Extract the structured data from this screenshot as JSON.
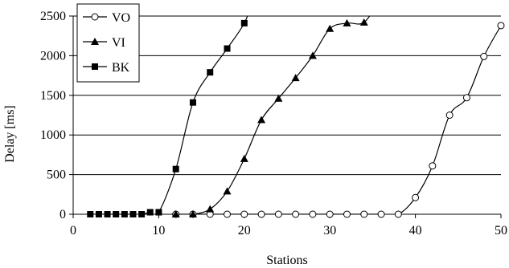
{
  "chart_data": {
    "type": "line",
    "xlabel": "Stations",
    "ylabel": "Delay [ms]",
    "xlim": [
      0,
      50
    ],
    "ylim": [
      0,
      2500
    ],
    "x_ticks": [
      0,
      10,
      20,
      30,
      40,
      50
    ],
    "y_ticks": [
      0,
      500,
      1000,
      1500,
      2000,
      2500
    ],
    "grid": "horizontal",
    "legend_position": "top-left",
    "line_color": "#000000",
    "series": [
      {
        "name": "VO",
        "marker": "circle-open",
        "x": [
          12,
          14,
          16,
          18,
          20,
          22,
          24,
          26,
          28,
          30,
          32,
          34,
          36,
          38,
          40,
          42,
          44,
          46,
          48,
          50
        ],
        "y": [
          0,
          0,
          0,
          0,
          0,
          0,
          0,
          0,
          0,
          0,
          0,
          0,
          0,
          0,
          210,
          610,
          1250,
          1470,
          1990,
          2380
        ]
      },
      {
        "name": "VI",
        "marker": "triangle-filled",
        "x": [
          12,
          14,
          16,
          18,
          20,
          22,
          24,
          26,
          28,
          30,
          32,
          34
        ],
        "y": [
          0,
          0,
          65,
          290,
          700,
          1190,
          1460,
          1720,
          2000,
          2340,
          2410,
          2420
        ]
      },
      {
        "name": "BK",
        "marker": "square-filled",
        "x": [
          2,
          3,
          4,
          5,
          6,
          7,
          8,
          9,
          10,
          12,
          14,
          16,
          18,
          20
        ],
        "y": [
          0,
          0,
          0,
          0,
          0,
          0,
          0,
          25,
          25,
          570,
          1410,
          1790,
          2090,
          2410
        ]
      }
    ]
  }
}
